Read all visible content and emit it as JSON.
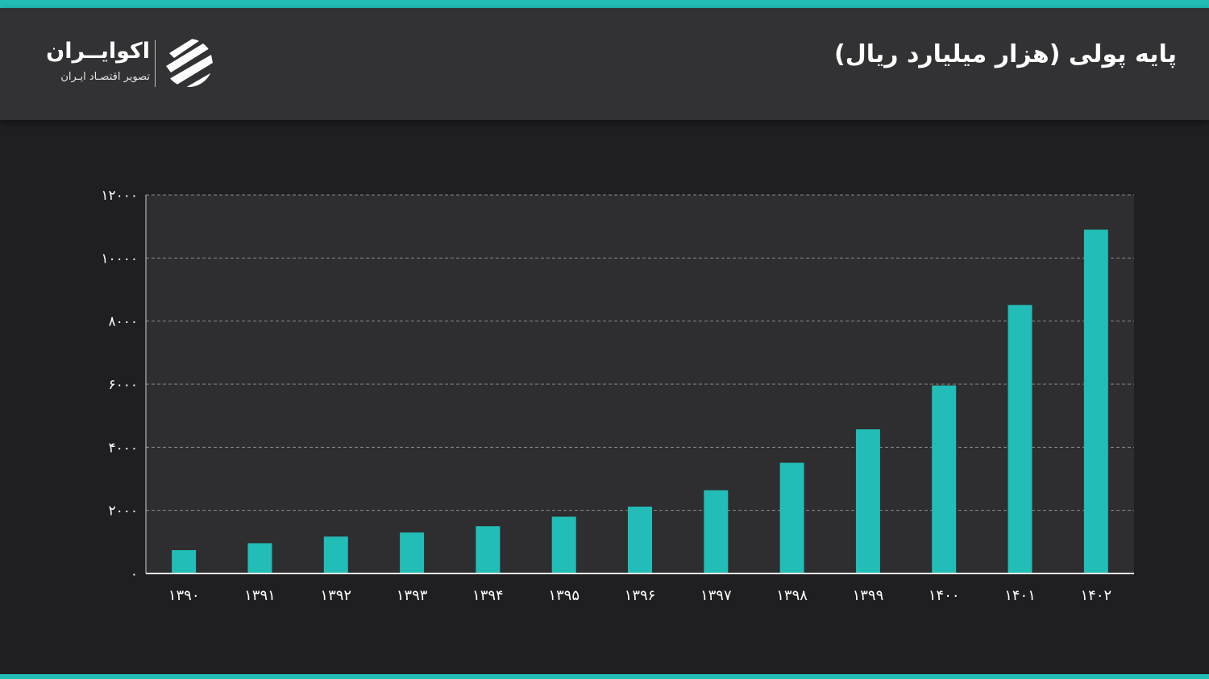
{
  "header": {
    "title": "پایه پولی (هزار میلیارد ریال)",
    "logo_name": "اکوایــران",
    "logo_tagline": "تصویر اقتصـاد ایـران"
  },
  "colors": {
    "accent": "#22bdb6",
    "bar": "#22bdb6",
    "background": "#1f1e20",
    "plot_background": "#2e2d2f",
    "header_background": "#323133"
  },
  "icons": {
    "logo": "ecoiran-stripes-logo"
  },
  "chart_data": {
    "type": "bar",
    "categories": [
      "۱۳۹۰",
      "۱۳۹۱",
      "۱۳۹۲",
      "۱۳۹۳",
      "۱۳۹۴",
      "۱۳۹۵",
      "۱۳۹۶",
      "۱۳۹۷",
      "۱۳۹۸",
      "۱۳۹۹",
      "۱۴۰۰",
      "۱۴۰۱",
      "۱۴۰۲"
    ],
    "values": [
      740,
      960,
      1170,
      1300,
      1500,
      1800,
      2120,
      2640,
      3510,
      4570,
      5960,
      8510,
      10900
    ],
    "ylim": [
      0,
      12000
    ],
    "yticks": [
      0,
      2000,
      4000,
      6000,
      8000,
      10000,
      12000
    ],
    "ytick_labels": [
      "۰",
      "۲۰۰۰",
      "۴۰۰۰",
      "۶۰۰۰",
      "۸۰۰۰",
      "۱۰۰۰۰",
      "۱۲۰۰۰"
    ],
    "title": "پایه پولی (هزار میلیارد ریال)",
    "xlabel": "",
    "ylabel": "",
    "grid": true,
    "grid_style": "dashed",
    "legend": "none"
  }
}
